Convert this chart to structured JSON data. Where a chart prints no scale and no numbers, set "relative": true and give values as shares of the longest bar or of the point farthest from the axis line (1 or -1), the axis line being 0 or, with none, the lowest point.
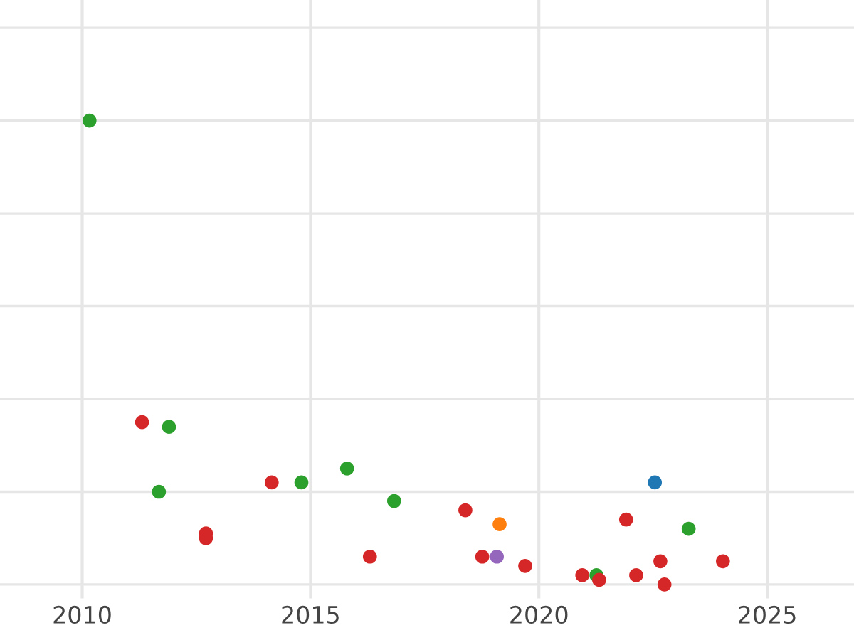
{
  "chart_data": {
    "type": "scatter",
    "relative": true,
    "grid": true,
    "marker": "circle",
    "xlim": [
      2008.2,
      2026.9
    ],
    "xticks": [
      2010,
      2015,
      2020,
      2025
    ],
    "series": [
      {
        "color": "#2ca02c",
        "x": [
          2010.16,
          2011.9,
          2011.68,
          2014.8,
          2015.8,
          2016.83,
          2021.26,
          2023.28
        ],
        "values": [
          1.0,
          0.34,
          0.2,
          0.22,
          0.25,
          0.18,
          0.02,
          0.12
        ]
      },
      {
        "color": "#d62728",
        "x": [
          2011.31,
          2012.71,
          2012.71,
          2014.15,
          2016.3,
          2018.39,
          2018.76,
          2019.7,
          2020.95,
          2021.32,
          2021.91,
          2022.13,
          2022.66,
          2022.75,
          2024.03
        ],
        "values": [
          0.35,
          0.11,
          0.1,
          0.22,
          0.06,
          0.16,
          0.06,
          0.04,
          0.02,
          0.01,
          0.14,
          0.02,
          0.05,
          0.0,
          0.05
        ]
      },
      {
        "color": "#1f77b4",
        "x": [
          2022.54
        ],
        "values": [
          0.22
        ]
      },
      {
        "color": "#ff7f0e",
        "x": [
          2019.14
        ],
        "values": [
          0.13
        ]
      },
      {
        "color": "#9467bd",
        "x": [
          2019.08
        ],
        "values": [
          0.06
        ]
      }
    ]
  }
}
